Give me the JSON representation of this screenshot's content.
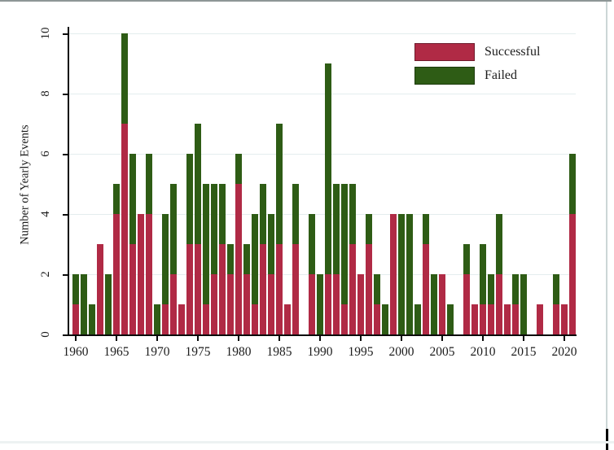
{
  "window": {
    "background": "#ffffff",
    "top_border_color": "#8e9696",
    "right_edge_color": "#000000"
  },
  "chart_data": {
    "type": "bar",
    "stacked": true,
    "title": "",
    "xlabel": "",
    "ylabel": "Number of Yearly Events",
    "ylim": [
      0,
      10
    ],
    "yticks": [
      0,
      2,
      4,
      6,
      8,
      10
    ],
    "xticks": [
      1960,
      1965,
      1970,
      1975,
      1980,
      1985,
      1990,
      1995,
      2000,
      2005,
      2010,
      2015,
      2020
    ],
    "grid": "horizontal-light",
    "gridline_color": "#e4edee",
    "legend": {
      "position": "top-right",
      "entries": [
        {
          "label": "Successful",
          "color": "#b02a45",
          "border": "#6e1a2b"
        },
        {
          "label": "Failed",
          "color": "#2e5c15",
          "border": "#1c3a0c"
        }
      ]
    },
    "years": [
      1960,
      1961,
      1962,
      1963,
      1964,
      1965,
      1966,
      1967,
      1968,
      1969,
      1970,
      1971,
      1972,
      1973,
      1974,
      1975,
      1976,
      1977,
      1978,
      1979,
      1980,
      1981,
      1982,
      1983,
      1984,
      1985,
      1986,
      1987,
      1988,
      1989,
      1990,
      1991,
      1992,
      1993,
      1994,
      1995,
      1996,
      1997,
      1998,
      1999,
      2000,
      2001,
      2002,
      2003,
      2004,
      2005,
      2006,
      2007,
      2008,
      2009,
      2010,
      2011,
      2012,
      2013,
      2014,
      2015,
      2016,
      2017,
      2018,
      2019,
      2020,
      2021
    ],
    "series": [
      {
        "name": "Successful",
        "values": [
          1,
          0,
          0,
          3,
          0,
          4,
          7,
          3,
          4,
          4,
          0,
          1,
          2,
          1,
          3,
          3,
          1,
          2,
          3,
          2,
          5,
          2,
          1,
          3,
          2,
          3,
          1,
          3,
          0,
          2,
          0,
          2,
          2,
          1,
          3,
          2,
          3,
          1,
          0,
          4,
          0,
          0,
          0,
          3,
          0,
          2,
          0,
          0,
          2,
          1,
          1,
          1,
          2,
          1,
          1,
          0,
          0,
          1,
          0,
          1,
          1,
          4
        ]
      },
      {
        "name": "Failed",
        "values": [
          1,
          2,
          1,
          0,
          2,
          1,
          3,
          3,
          0,
          2,
          1,
          3,
          3,
          0,
          3,
          4,
          4,
          3,
          2,
          1,
          1,
          1,
          3,
          2,
          2,
          4,
          0,
          2,
          0,
          2,
          2,
          7,
          3,
          4,
          2,
          0,
          1,
          1,
          1,
          0,
          4,
          4,
          1,
          1,
          2,
          0,
          1,
          0,
          1,
          0,
          2,
          1,
          2,
          0,
          1,
          2,
          0,
          0,
          0,
          1,
          0,
          2
        ]
      }
    ]
  }
}
